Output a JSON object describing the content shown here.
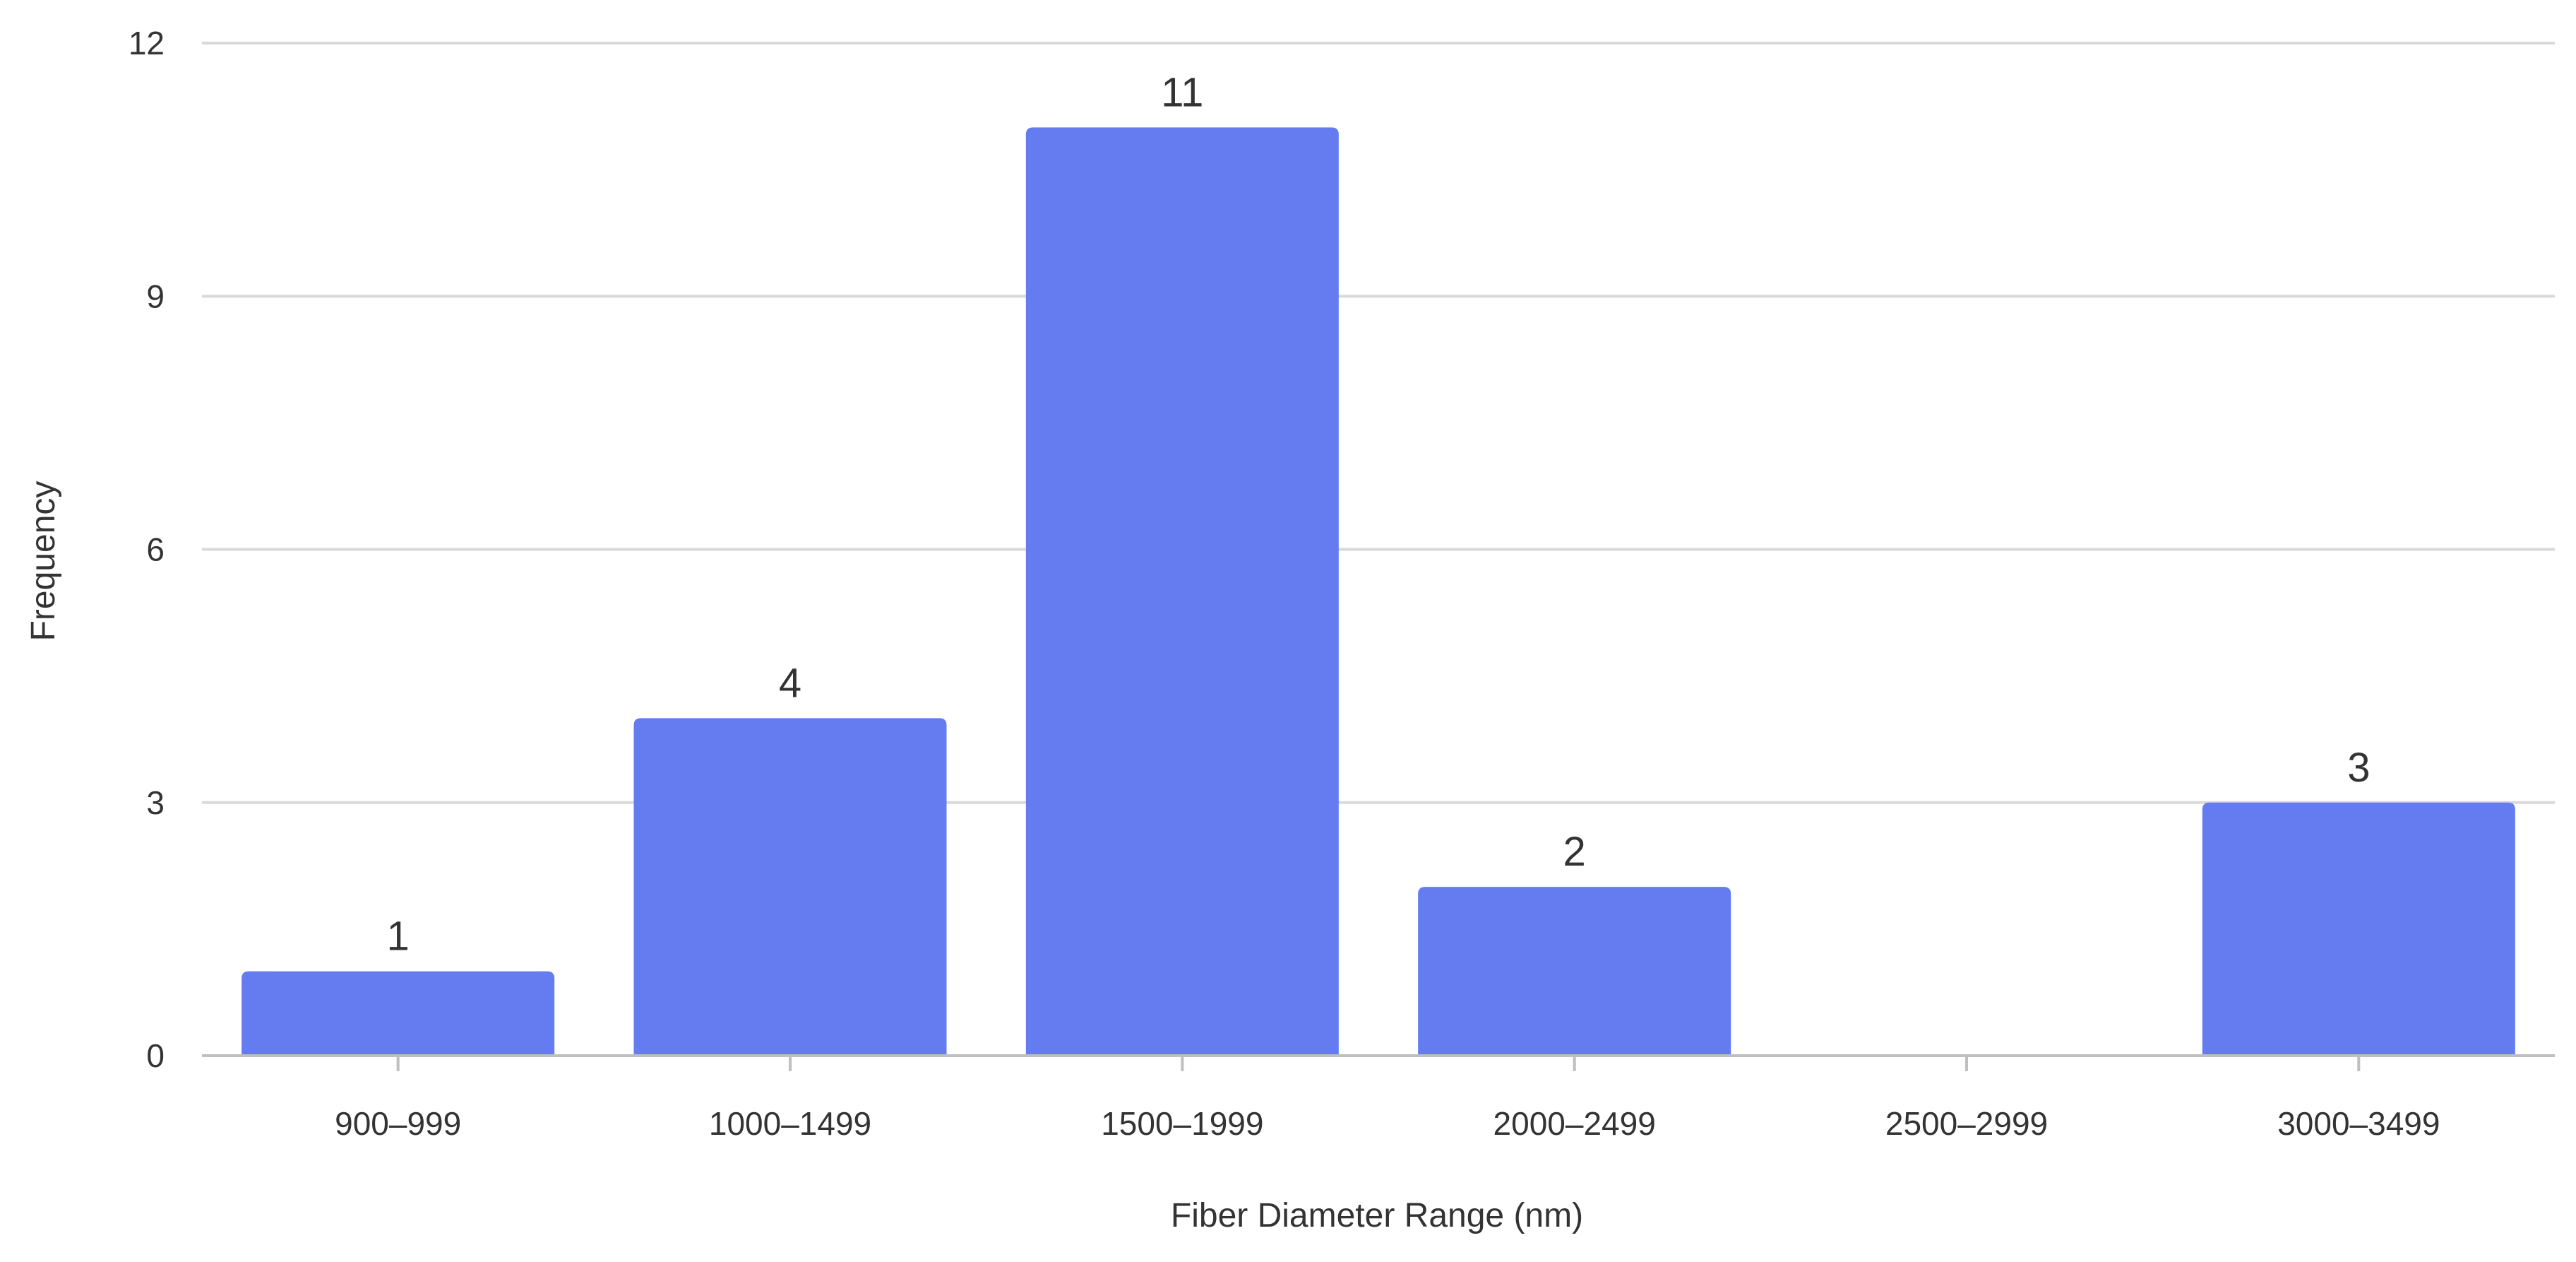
{
  "chart_data": {
    "type": "bar",
    "title": "",
    "xlabel": "Fiber Diameter Range (nm)",
    "ylabel": "Frequency",
    "categories": [
      "900–999",
      "1000–1499",
      "1500–1999",
      "2000–2499",
      "2500–2999",
      "3000–3499"
    ],
    "values": [
      1,
      4,
      11,
      2,
      0,
      3
    ],
    "data_labels": [
      "1",
      "4",
      "11",
      "2",
      "",
      "3"
    ],
    "ylim": [
      0,
      12
    ],
    "yticks": [
      0,
      3,
      6,
      9,
      12
    ],
    "ytick_labels": [
      "0",
      "3",
      "6",
      "9",
      "12"
    ],
    "grid": true,
    "legend": "none"
  },
  "colors": {
    "bar": "#647cf0",
    "grid": "#d9d9d9",
    "axis": "#bfbfbf",
    "text": "#333333"
  }
}
